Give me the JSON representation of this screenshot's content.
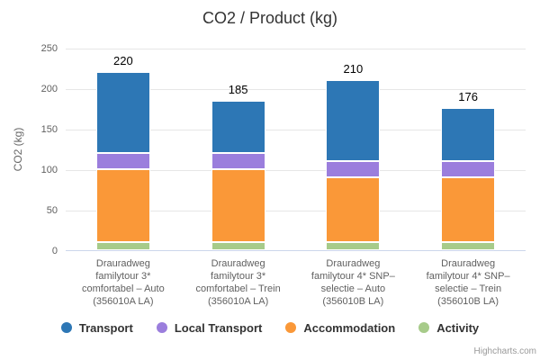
{
  "chart_data": {
    "type": "bar",
    "stacked": true,
    "title": "CO2 / Product (kg)",
    "ylabel": "CO2 (kg)",
    "ylim": [
      0,
      250
    ],
    "yticks": [
      0,
      50,
      100,
      150,
      200,
      250
    ],
    "grid": true,
    "legend_position": "bottom",
    "categories": [
      {
        "lines": [
          "Drauradweg",
          "familytour 3*",
          "comfortabel – Auto",
          "(356010A LA)"
        ]
      },
      {
        "lines": [
          "Drauradweg",
          "familytour 3*",
          "comfortabel – Trein",
          "(356010A LA)"
        ]
      },
      {
        "lines": [
          "Drauradweg",
          "familytour 4* SNP–",
          "selectie – Auto",
          "(356010B LA)"
        ]
      },
      {
        "lines": [
          "Drauradweg",
          "familytour 4* SNP–",
          "selectie – Trein",
          "(356010B LA)"
        ]
      }
    ],
    "series": [
      {
        "name": "Transport",
        "color": "#2d77b5",
        "values": [
          100,
          65,
          100,
          66
        ]
      },
      {
        "name": "Local Transport",
        "color": "#9b7edd",
        "values": [
          20,
          20,
          20,
          20
        ]
      },
      {
        "name": "Accommodation",
        "color": "#fa9838",
        "values": [
          90,
          90,
          80,
          80
        ]
      },
      {
        "name": "Activity",
        "color": "#a7cb8a",
        "values": [
          10,
          10,
          10,
          10
        ]
      }
    ],
    "stack_labels": [
      "220",
      "185",
      "210",
      "176"
    ],
    "credit": "Highcharts.com"
  }
}
